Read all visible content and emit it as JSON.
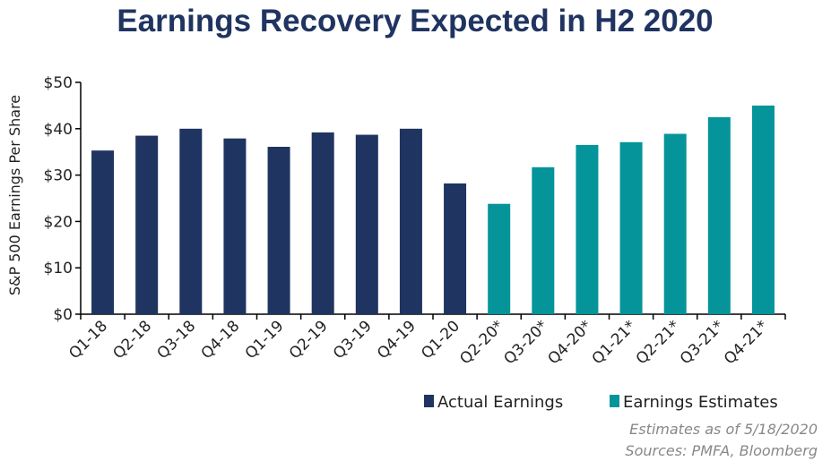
{
  "chart_data": {
    "type": "bar",
    "title": "Earnings Recovery Expected in H2 2020",
    "ylabel": "S&P 500 Earnings Per Share",
    "xlabel": "",
    "ylim": [
      0,
      50
    ],
    "yticks": [
      "$0",
      "$10",
      "$20",
      "$30",
      "$40",
      "$50"
    ],
    "ytick_values": [
      0,
      10,
      20,
      30,
      40,
      50
    ],
    "categories": [
      "Q1-18",
      "Q2-18",
      "Q3-18",
      "Q4-18",
      "Q1-19",
      "Q2-19",
      "Q3-19",
      "Q4-19",
      "Q1-20",
      "Q2-20*",
      "Q3-20*",
      "Q4-20*",
      "Q1-21*",
      "Q2-21*",
      "Q3-21*",
      "Q4-21*"
    ],
    "series": [
      {
        "name": "Actual Earnings",
        "color": "#1f3460",
        "values": [
          35.3,
          38.5,
          40.0,
          37.9,
          36.1,
          39.2,
          38.7,
          40.0,
          28.2,
          null,
          null,
          null,
          null,
          null,
          null,
          null
        ]
      },
      {
        "name": "Earnings Estimates",
        "color": "#05949a",
        "values": [
          null,
          null,
          null,
          null,
          null,
          null,
          null,
          null,
          null,
          23.8,
          31.7,
          36.5,
          37.1,
          38.9,
          42.5,
          45.0
        ]
      }
    ],
    "grid": false,
    "legend_position": "bottom-right",
    "notes": [
      "Estimates as of 5/18/2020",
      "Sources: PMFA, Bloomberg"
    ]
  }
}
